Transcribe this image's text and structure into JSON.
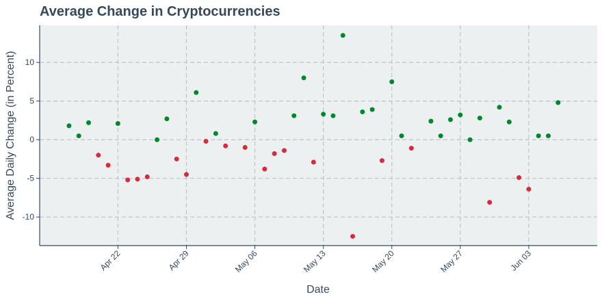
{
  "chart_data": {
    "type": "scatter",
    "title": "Average Change in Cryptocurrencies",
    "xlabel": "Date",
    "ylabel": "Average Daily Change (in Percent)",
    "x_tick_labels": [
      "Apr 22",
      "Apr 29",
      "May 06",
      "May 13",
      "May 20",
      "May 27",
      "Jun 03"
    ],
    "x_ticks": [
      "2024-04-22",
      "2024-04-29",
      "2024-05-06",
      "2024-05-13",
      "2024-05-20",
      "2024-05-27",
      "2024-06-03"
    ],
    "xlim": [
      "2024-04-14",
      "2024-06-10"
    ],
    "y_ticks": [
      -10,
      -5,
      0,
      5,
      10
    ],
    "ylim": [
      -13.7,
      14.8
    ],
    "grid": true,
    "colors": {
      "positive": "#00892a",
      "negative": "#d62b3c",
      "background": "#ecf0f1",
      "grid": "#bdc3c7",
      "text": "#34495e"
    },
    "points": [
      {
        "date": "2024-04-17",
        "value": 1.8
      },
      {
        "date": "2024-04-18",
        "value": 0.5
      },
      {
        "date": "2024-04-19",
        "value": 2.2
      },
      {
        "date": "2024-04-20",
        "value": -2.0
      },
      {
        "date": "2024-04-21",
        "value": -3.3
      },
      {
        "date": "2024-04-22",
        "value": 2.1
      },
      {
        "date": "2024-04-23",
        "value": -5.2
      },
      {
        "date": "2024-04-24",
        "value": -5.1
      },
      {
        "date": "2024-04-25",
        "value": -4.8
      },
      {
        "date": "2024-04-26",
        "value": 0.0
      },
      {
        "date": "2024-04-27",
        "value": 2.7
      },
      {
        "date": "2024-04-28",
        "value": -2.5
      },
      {
        "date": "2024-04-29",
        "value": -4.5
      },
      {
        "date": "2024-04-30",
        "value": 6.1
      },
      {
        "date": "2024-05-01",
        "value": -0.2
      },
      {
        "date": "2024-05-02",
        "value": 0.8
      },
      {
        "date": "2024-05-03",
        "value": -0.8
      },
      {
        "date": "2024-05-05",
        "value": -1.0
      },
      {
        "date": "2024-05-06",
        "value": 2.3
      },
      {
        "date": "2024-05-07",
        "value": -3.8
      },
      {
        "date": "2024-05-08",
        "value": -1.8
      },
      {
        "date": "2024-05-09",
        "value": -1.4
      },
      {
        "date": "2024-05-10",
        "value": 3.1
      },
      {
        "date": "2024-05-11",
        "value": 8.0
      },
      {
        "date": "2024-05-12",
        "value": -2.9
      },
      {
        "date": "2024-05-13",
        "value": 3.3
      },
      {
        "date": "2024-05-14",
        "value": 3.1
      },
      {
        "date": "2024-05-15",
        "value": 13.5
      },
      {
        "date": "2024-05-16",
        "value": -12.5
      },
      {
        "date": "2024-05-17",
        "value": 3.6
      },
      {
        "date": "2024-05-18",
        "value": 3.9
      },
      {
        "date": "2024-05-19",
        "value": -2.7
      },
      {
        "date": "2024-05-20",
        "value": 7.5
      },
      {
        "date": "2024-05-21",
        "value": 0.5
      },
      {
        "date": "2024-05-22",
        "value": -1.1
      },
      {
        "date": "2024-05-24",
        "value": 2.4
      },
      {
        "date": "2024-05-25",
        "value": 0.5
      },
      {
        "date": "2024-05-26",
        "value": 2.6
      },
      {
        "date": "2024-05-27",
        "value": 3.2
      },
      {
        "date": "2024-05-28",
        "value": 0.0
      },
      {
        "date": "2024-05-29",
        "value": 2.8
      },
      {
        "date": "2024-05-30",
        "value": -8.1
      },
      {
        "date": "2024-05-31",
        "value": 4.2
      },
      {
        "date": "2024-06-01",
        "value": 2.3
      },
      {
        "date": "2024-06-02",
        "value": -4.9
      },
      {
        "date": "2024-06-03",
        "value": -6.4
      },
      {
        "date": "2024-06-04",
        "value": 0.5
      },
      {
        "date": "2024-06-05",
        "value": 0.5
      },
      {
        "date": "2024-06-06",
        "value": 4.8
      }
    ]
  }
}
